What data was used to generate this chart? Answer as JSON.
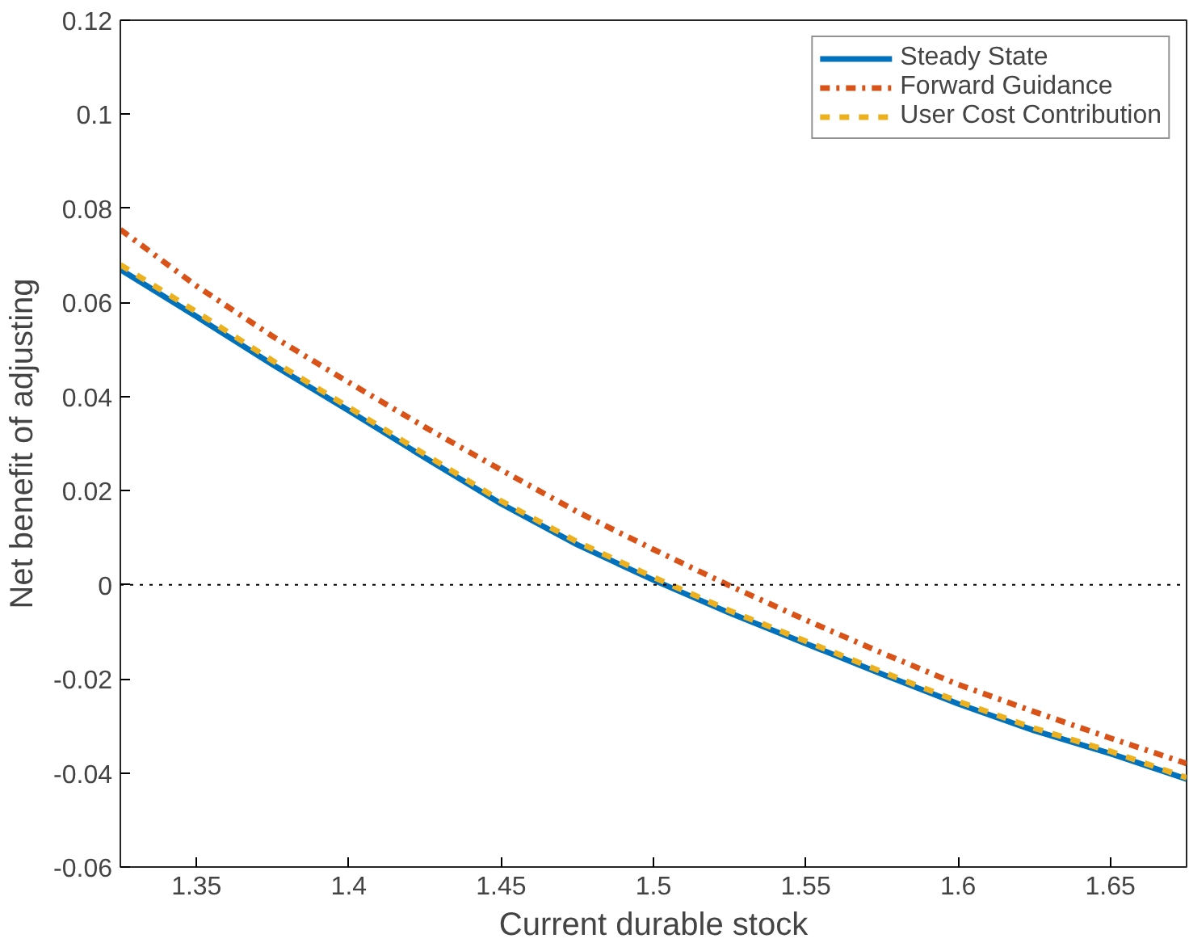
{
  "chart_data": {
    "type": "line",
    "xlabel": "Current durable stock",
    "ylabel": "Net benefit of adjusting",
    "x": [
      1.325,
      1.35,
      1.375,
      1.4,
      1.425,
      1.45,
      1.475,
      1.5,
      1.525,
      1.55,
      1.575,
      1.6,
      1.625,
      1.65,
      1.675
    ],
    "series": [
      {
        "name": "Steady State",
        "color": "#0072bd",
        "line_style": "solid",
        "values": [
          0.067,
          0.057,
          0.0468,
          0.037,
          0.027,
          0.0172,
          0.0085,
          0.001,
          -0.006,
          -0.0125,
          -0.019,
          -0.0253,
          -0.031,
          -0.0359,
          -0.0413
        ]
      },
      {
        "name": "Forward Guidance",
        "color": "#d95319",
        "line_style": "dashdot",
        "values": [
          0.0755,
          0.0635,
          0.0528,
          0.043,
          0.0335,
          0.0244,
          0.0155,
          0.0075,
          -0.0002,
          -0.0075,
          -0.0145,
          -0.0212,
          -0.027,
          -0.0326,
          -0.038
        ]
      },
      {
        "name": "User Cost Contribution",
        "color": "#edb120",
        "line_style": "dashed",
        "values": [
          0.068,
          0.058,
          0.0476,
          0.0377,
          0.0277,
          0.0178,
          0.0091,
          0.0016,
          -0.0055,
          -0.012,
          -0.0185,
          -0.0248,
          -0.0305,
          -0.0354,
          -0.041
        ]
      }
    ],
    "xlim": [
      1.325,
      1.675
    ],
    "ylim": [
      -0.06,
      0.12
    ],
    "xticks": [
      1.35,
      1.4,
      1.45,
      1.5,
      1.55,
      1.6,
      1.65
    ],
    "yticks": [
      -0.06,
      -0.04,
      -0.02,
      0,
      0.02,
      0.04,
      0.06,
      0.08,
      0.1,
      0.12
    ],
    "ref_lines": [
      {
        "axis": "y",
        "value": 0,
        "color": "#000000",
        "line_style": "dotted"
      }
    ],
    "grid": false,
    "legend": "top right"
  }
}
